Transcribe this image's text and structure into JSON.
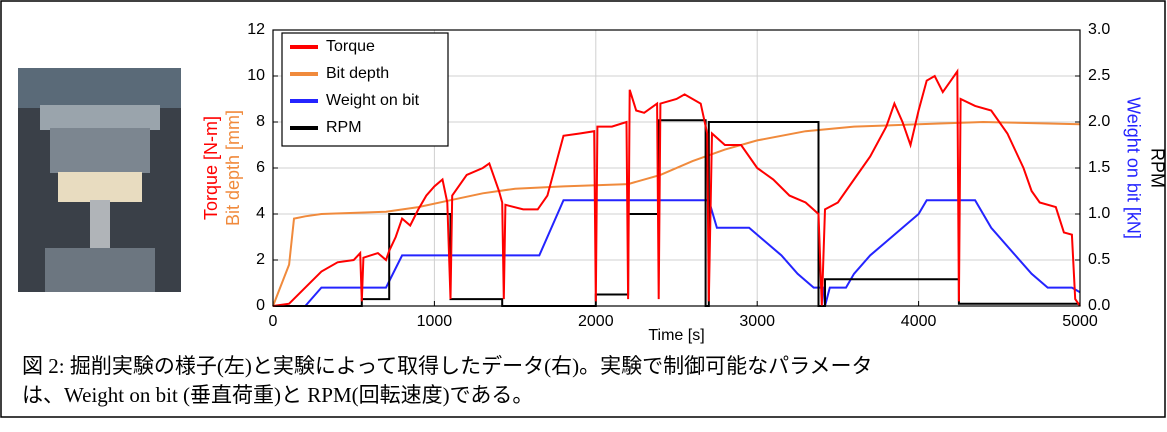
{
  "chart_data": {
    "type": "line",
    "xlabel": "Time [s]",
    "ylabels": [
      "Torque [N-m]",
      "Bit depth [mm]"
    ],
    "y2labels": [
      "Weight on bit [kN]",
      "RPM"
    ],
    "xlim": [
      0,
      5000
    ],
    "xticks": [
      0,
      1000,
      2000,
      3000,
      4000,
      5000
    ],
    "ylim": [
      0,
      12
    ],
    "yticks": [
      0,
      2,
      4,
      6,
      8,
      10,
      12
    ],
    "y2lim": [
      0,
      3
    ],
    "y2ticks": [
      {
        "value": 0,
        "label": "0.0"
      },
      {
        "value": 0.5,
        "label": "0.5"
      },
      {
        "value": 1,
        "label": "1.0"
      },
      {
        "value": 1.5,
        "label": "1.5"
      },
      {
        "value": 2,
        "label": "2.0"
      },
      {
        "value": 2.5,
        "label": "2.5"
      },
      {
        "value": 3,
        "label": "3.0"
      }
    ],
    "grid": true,
    "legend": "upper left",
    "series": [
      {
        "name": "Torque",
        "color": "#ff0000",
        "x": [
          0,
          100,
          200,
          300,
          400,
          500,
          540,
          550,
          560,
          650,
          700,
          720,
          760,
          800,
          850,
          900,
          950,
          1000,
          1050,
          1080,
          1100,
          1110,
          1200,
          1300,
          1340,
          1400,
          1420,
          1430,
          1440,
          1550,
          1640,
          1700,
          1800,
          1900,
          1990,
          2000,
          2010,
          2100,
          2190,
          2200,
          2210,
          2250,
          2300,
          2380,
          2390,
          2400,
          2500,
          2550,
          2650,
          2690,
          2700,
          2720,
          2800,
          2900,
          3000,
          3100,
          3200,
          3300,
          3380,
          3400,
          3420,
          3500,
          3600,
          3700,
          3800,
          3850,
          3900,
          3950,
          4000,
          4050,
          4100,
          4150,
          4200,
          4240,
          4250,
          4260,
          4350,
          4450,
          4550,
          4650,
          4700,
          4750,
          4850,
          4900,
          4950,
          4970,
          5000
        ],
        "values": [
          0,
          0.1,
          0.8,
          1.5,
          1.9,
          2.0,
          2.3,
          0.2,
          2.1,
          2.3,
          2.0,
          2.4,
          3.0,
          3.8,
          3.5,
          4.2,
          4.8,
          5.2,
          5.5,
          4.5,
          0.3,
          4.8,
          5.7,
          6.0,
          6.2,
          5.0,
          4.5,
          0.3,
          4.4,
          4.2,
          4.2,
          4.8,
          7.4,
          7.5,
          7.6,
          0.2,
          7.8,
          7.8,
          8.0,
          0.3,
          9.4,
          8.5,
          8.4,
          8.8,
          0.3,
          8.8,
          9.0,
          9.2,
          8.8,
          7.5,
          0.2,
          7.5,
          7.0,
          7.0,
          6.0,
          5.5,
          4.8,
          4.5,
          4.0,
          0,
          4.2,
          4.5,
          5.5,
          6.5,
          7.8,
          8.8,
          8.0,
          7.0,
          8.5,
          9.8,
          10.0,
          9.3,
          9.8,
          10.2,
          0.2,
          9.0,
          8.7,
          8.5,
          7.5,
          6.0,
          5.0,
          4.5,
          4.3,
          3.2,
          3.1,
          0.3,
          0
        ]
      },
      {
        "name": "Bit depth",
        "color": "#f08a3c",
        "x": [
          0,
          100,
          130,
          200,
          300,
          500,
          700,
          900,
          1100,
          1300,
          1500,
          1800,
          2200,
          2400,
          2600,
          2800,
          3000,
          3300,
          3600,
          4000,
          4400,
          5000
        ],
        "values": [
          0,
          1.8,
          3.8,
          3.9,
          4.0,
          4.05,
          4.1,
          4.3,
          4.6,
          4.9,
          5.1,
          5.2,
          5.3,
          5.7,
          6.3,
          6.8,
          7.2,
          7.6,
          7.8,
          7.9,
          8.0,
          7.9
        ]
      },
      {
        "name": "Weight on bit",
        "color": "#2424ff",
        "axis": "y2",
        "x": [
          0,
          200,
          300,
          700,
          800,
          1650,
          1800,
          2700,
          2750,
          2950,
          3050,
          3150,
          3250,
          3350,
          3410,
          3420,
          3450,
          3550,
          3600,
          3700,
          3800,
          3900,
          4000,
          4050,
          4350,
          4450,
          4600,
          4700,
          4800,
          4950,
          5000
        ],
        "values": [
          0,
          0,
          0.2,
          0.2,
          0.55,
          0.55,
          1.15,
          1.15,
          0.85,
          0.85,
          0.7,
          0.55,
          0.35,
          0.2,
          0.2,
          0,
          0.2,
          0.2,
          0.35,
          0.55,
          0.7,
          0.85,
          1.0,
          1.15,
          1.15,
          0.85,
          0.55,
          0.35,
          0.2,
          0.2,
          0.15
        ]
      },
      {
        "name": "RPM",
        "color": "#000000",
        "axis": "y2",
        "x": [
          0,
          550,
          550,
          720,
          720,
          1100,
          1100,
          1420,
          1420,
          2000,
          2000,
          2200,
          2200,
          2390,
          2390,
          2680,
          2680,
          2700,
          2700,
          3380,
          3380,
          3420,
          3420,
          4250,
          4250,
          5000
        ],
        "values": [
          0,
          0,
          0.075,
          0.075,
          1.0,
          1.0,
          0.075,
          0.075,
          0,
          0,
          0.125,
          0.125,
          1.0,
          1.0,
          2.02,
          2.02,
          0,
          0,
          2.0,
          2.0,
          0,
          0,
          0.29,
          0.29,
          0.025,
          0.025
        ]
      }
    ]
  },
  "caption": [
    "図 2: 掘削実験の様子(左)と実験によって取得したデータ(右)。実験で制御可能なパラメータ",
    "は、Weight on bit (垂直荷重)と RPM(回転速度)である。"
  ]
}
